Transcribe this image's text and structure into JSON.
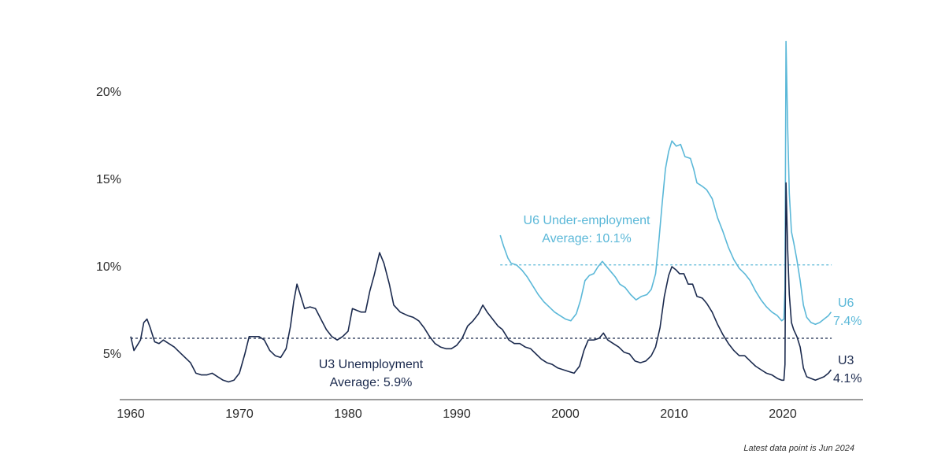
{
  "chart_data": {
    "type": "line",
    "xlim": [
      1959.7,
      2024.5
    ],
    "ylim": [
      2.5,
      23.0
    ],
    "x_ticks": [
      1960,
      1970,
      1980,
      1990,
      2000,
      2010,
      2020
    ],
    "x_tick_labels": [
      "1960",
      "1970",
      "1980",
      "1990",
      "2000",
      "2010",
      "2020"
    ],
    "y_ticks": [
      5,
      10,
      15,
      20
    ],
    "y_tick_labels": [
      "5%",
      "10%",
      "15%",
      "20%"
    ],
    "colors": {
      "u3": "#1b2a4e",
      "u6": "#5bb8d8"
    },
    "series": [
      {
        "key": "u3",
        "points": [
          [
            1960.0,
            6.0
          ],
          [
            1960.3,
            5.2
          ],
          [
            1960.6,
            5.5
          ],
          [
            1960.9,
            5.8
          ],
          [
            1961.2,
            6.8
          ],
          [
            1961.5,
            7.0
          ],
          [
            1961.8,
            6.5
          ],
          [
            1962.2,
            5.7
          ],
          [
            1962.6,
            5.6
          ],
          [
            1963.0,
            5.8
          ],
          [
            1963.5,
            5.6
          ],
          [
            1964.0,
            5.4
          ],
          [
            1964.5,
            5.1
          ],
          [
            1965.0,
            4.8
          ],
          [
            1965.5,
            4.5
          ],
          [
            1966.0,
            3.9
          ],
          [
            1966.5,
            3.8
          ],
          [
            1967.0,
            3.8
          ],
          [
            1967.5,
            3.9
          ],
          [
            1968.0,
            3.7
          ],
          [
            1968.5,
            3.5
          ],
          [
            1969.0,
            3.4
          ],
          [
            1969.5,
            3.5
          ],
          [
            1970.0,
            3.9
          ],
          [
            1970.5,
            5.0
          ],
          [
            1970.9,
            6.0
          ],
          [
            1971.3,
            6.0
          ],
          [
            1971.8,
            6.0
          ],
          [
            1972.3,
            5.8
          ],
          [
            1972.8,
            5.2
          ],
          [
            1973.3,
            4.9
          ],
          [
            1973.8,
            4.8
          ],
          [
            1974.3,
            5.3
          ],
          [
            1974.7,
            6.6
          ],
          [
            1975.0,
            8.0
          ],
          [
            1975.3,
            9.0
          ],
          [
            1975.6,
            8.4
          ],
          [
            1976.0,
            7.6
          ],
          [
            1976.5,
            7.7
          ],
          [
            1977.0,
            7.6
          ],
          [
            1977.5,
            7.0
          ],
          [
            1978.0,
            6.4
          ],
          [
            1978.5,
            6.0
          ],
          [
            1979.0,
            5.8
          ],
          [
            1979.5,
            6.0
          ],
          [
            1980.0,
            6.3
          ],
          [
            1980.4,
            7.6
          ],
          [
            1980.8,
            7.5
          ],
          [
            1981.2,
            7.4
          ],
          [
            1981.6,
            7.4
          ],
          [
            1982.0,
            8.6
          ],
          [
            1982.4,
            9.5
          ],
          [
            1982.9,
            10.8
          ],
          [
            1983.3,
            10.2
          ],
          [
            1983.8,
            9.0
          ],
          [
            1984.2,
            7.8
          ],
          [
            1984.8,
            7.4
          ],
          [
            1985.5,
            7.2
          ],
          [
            1986.0,
            7.1
          ],
          [
            1986.5,
            6.9
          ],
          [
            1987.0,
            6.5
          ],
          [
            1987.5,
            6.0
          ],
          [
            1988.0,
            5.6
          ],
          [
            1988.5,
            5.4
          ],
          [
            1989.0,
            5.3
          ],
          [
            1989.5,
            5.3
          ],
          [
            1990.0,
            5.5
          ],
          [
            1990.5,
            5.9
          ],
          [
            1991.0,
            6.6
          ],
          [
            1991.5,
            6.9
          ],
          [
            1992.0,
            7.3
          ],
          [
            1992.4,
            7.8
          ],
          [
            1992.8,
            7.4
          ],
          [
            1993.3,
            7.0
          ],
          [
            1993.8,
            6.6
          ],
          [
            1994.2,
            6.4
          ],
          [
            1994.8,
            5.8
          ],
          [
            1995.3,
            5.6
          ],
          [
            1995.8,
            5.6
          ],
          [
            1996.3,
            5.4
          ],
          [
            1996.8,
            5.3
          ],
          [
            1997.3,
            5.0
          ],
          [
            1997.8,
            4.7
          ],
          [
            1998.3,
            4.5
          ],
          [
            1998.8,
            4.4
          ],
          [
            1999.3,
            4.2
          ],
          [
            1999.8,
            4.1
          ],
          [
            2000.3,
            4.0
          ],
          [
            2000.8,
            3.9
          ],
          [
            2001.3,
            4.3
          ],
          [
            2001.7,
            5.2
          ],
          [
            2002.1,
            5.8
          ],
          [
            2002.6,
            5.8
          ],
          [
            2003.1,
            5.9
          ],
          [
            2003.5,
            6.2
          ],
          [
            2003.9,
            5.8
          ],
          [
            2004.4,
            5.6
          ],
          [
            2004.9,
            5.4
          ],
          [
            2005.4,
            5.1
          ],
          [
            2005.9,
            5.0
          ],
          [
            2006.4,
            4.6
          ],
          [
            2006.9,
            4.5
          ],
          [
            2007.4,
            4.6
          ],
          [
            2007.9,
            4.9
          ],
          [
            2008.3,
            5.4
          ],
          [
            2008.7,
            6.5
          ],
          [
            2009.1,
            8.3
          ],
          [
            2009.5,
            9.5
          ],
          [
            2009.8,
            10.0
          ],
          [
            2010.2,
            9.8
          ],
          [
            2010.5,
            9.6
          ],
          [
            2010.9,
            9.6
          ],
          [
            2011.3,
            9.0
          ],
          [
            2011.7,
            9.0
          ],
          [
            2012.1,
            8.3
          ],
          [
            2012.6,
            8.2
          ],
          [
            2013.0,
            7.9
          ],
          [
            2013.5,
            7.4
          ],
          [
            2014.0,
            6.7
          ],
          [
            2014.5,
            6.1
          ],
          [
            2015.0,
            5.6
          ],
          [
            2015.5,
            5.2
          ],
          [
            2016.0,
            4.9
          ],
          [
            2016.5,
            4.9
          ],
          [
            2017.0,
            4.6
          ],
          [
            2017.5,
            4.3
          ],
          [
            2018.0,
            4.1
          ],
          [
            2018.5,
            3.9
          ],
          [
            2019.0,
            3.8
          ],
          [
            2019.5,
            3.6
          ],
          [
            2019.9,
            3.5
          ],
          [
            2020.1,
            3.5
          ],
          [
            2020.2,
            4.4
          ],
          [
            2020.3,
            14.8
          ],
          [
            2020.45,
            11.0
          ],
          [
            2020.6,
            8.4
          ],
          [
            2020.8,
            6.8
          ],
          [
            2021.0,
            6.4
          ],
          [
            2021.3,
            6.0
          ],
          [
            2021.6,
            5.4
          ],
          [
            2021.9,
            4.2
          ],
          [
            2022.2,
            3.7
          ],
          [
            2022.6,
            3.6
          ],
          [
            2023.0,
            3.5
          ],
          [
            2023.4,
            3.6
          ],
          [
            2023.8,
            3.7
          ],
          [
            2024.0,
            3.8
          ],
          [
            2024.2,
            3.9
          ],
          [
            2024.45,
            4.1
          ]
        ]
      },
      {
        "key": "u6",
        "points": [
          [
            1994.0,
            11.8
          ],
          [
            1994.3,
            11.2
          ],
          [
            1994.7,
            10.5
          ],
          [
            1995.0,
            10.2
          ],
          [
            1995.5,
            10.1
          ],
          [
            1996.0,
            9.8
          ],
          [
            1996.5,
            9.4
          ],
          [
            1997.0,
            8.9
          ],
          [
            1997.5,
            8.4
          ],
          [
            1998.0,
            8.0
          ],
          [
            1998.5,
            7.7
          ],
          [
            1999.0,
            7.4
          ],
          [
            1999.5,
            7.2
          ],
          [
            2000.0,
            7.0
          ],
          [
            2000.5,
            6.9
          ],
          [
            2001.0,
            7.3
          ],
          [
            2001.4,
            8.1
          ],
          [
            2001.8,
            9.2
          ],
          [
            2002.2,
            9.5
          ],
          [
            2002.6,
            9.6
          ],
          [
            2003.0,
            10.0
          ],
          [
            2003.4,
            10.3
          ],
          [
            2003.8,
            10.0
          ],
          [
            2004.2,
            9.7
          ],
          [
            2004.6,
            9.4
          ],
          [
            2005.0,
            9.0
          ],
          [
            2005.5,
            8.8
          ],
          [
            2006.0,
            8.4
          ],
          [
            2006.5,
            8.1
          ],
          [
            2007.0,
            8.3
          ],
          [
            2007.5,
            8.4
          ],
          [
            2007.9,
            8.7
          ],
          [
            2008.3,
            9.6
          ],
          [
            2008.6,
            11.5
          ],
          [
            2008.9,
            13.6
          ],
          [
            2009.2,
            15.6
          ],
          [
            2009.5,
            16.6
          ],
          [
            2009.8,
            17.2
          ],
          [
            2010.2,
            16.9
          ],
          [
            2010.6,
            17.0
          ],
          [
            2011.0,
            16.3
          ],
          [
            2011.5,
            16.2
          ],
          [
            2011.8,
            15.6
          ],
          [
            2012.1,
            14.8
          ],
          [
            2012.6,
            14.6
          ],
          [
            2013.0,
            14.4
          ],
          [
            2013.5,
            13.9
          ],
          [
            2014.0,
            12.8
          ],
          [
            2014.5,
            12.0
          ],
          [
            2015.0,
            11.1
          ],
          [
            2015.5,
            10.4
          ],
          [
            2016.0,
            9.9
          ],
          [
            2016.5,
            9.6
          ],
          [
            2017.0,
            9.2
          ],
          [
            2017.5,
            8.6
          ],
          [
            2018.0,
            8.1
          ],
          [
            2018.5,
            7.7
          ],
          [
            2019.0,
            7.4
          ],
          [
            2019.5,
            7.2
          ],
          [
            2019.9,
            6.9
          ],
          [
            2020.1,
            7.0
          ],
          [
            2020.2,
            8.7
          ],
          [
            2020.3,
            22.9
          ],
          [
            2020.45,
            18.0
          ],
          [
            2020.6,
            14.2
          ],
          [
            2020.8,
            12.0
          ],
          [
            2021.0,
            11.4
          ],
          [
            2021.3,
            10.4
          ],
          [
            2021.6,
            9.2
          ],
          [
            2021.9,
            7.8
          ],
          [
            2022.2,
            7.1
          ],
          [
            2022.6,
            6.8
          ],
          [
            2023.0,
            6.7
          ],
          [
            2023.4,
            6.8
          ],
          [
            2023.8,
            7.0
          ],
          [
            2024.2,
            7.2
          ],
          [
            2024.45,
            7.4
          ]
        ]
      }
    ],
    "averages": {
      "u3": 5.9,
      "u6": 10.1
    },
    "annotations": {
      "u3_line1": "U3 Unemployment",
      "u3_line2": "Average: 5.9%",
      "u6_line1": "U6 Under-employment",
      "u6_line2": "Average: 10.1%",
      "u3_end_name": "U3",
      "u3_end_value": "4.1%",
      "u6_end_name": "U6",
      "u6_end_value": "7.4%",
      "footnote": "Latest data point is Jun 2024"
    }
  }
}
